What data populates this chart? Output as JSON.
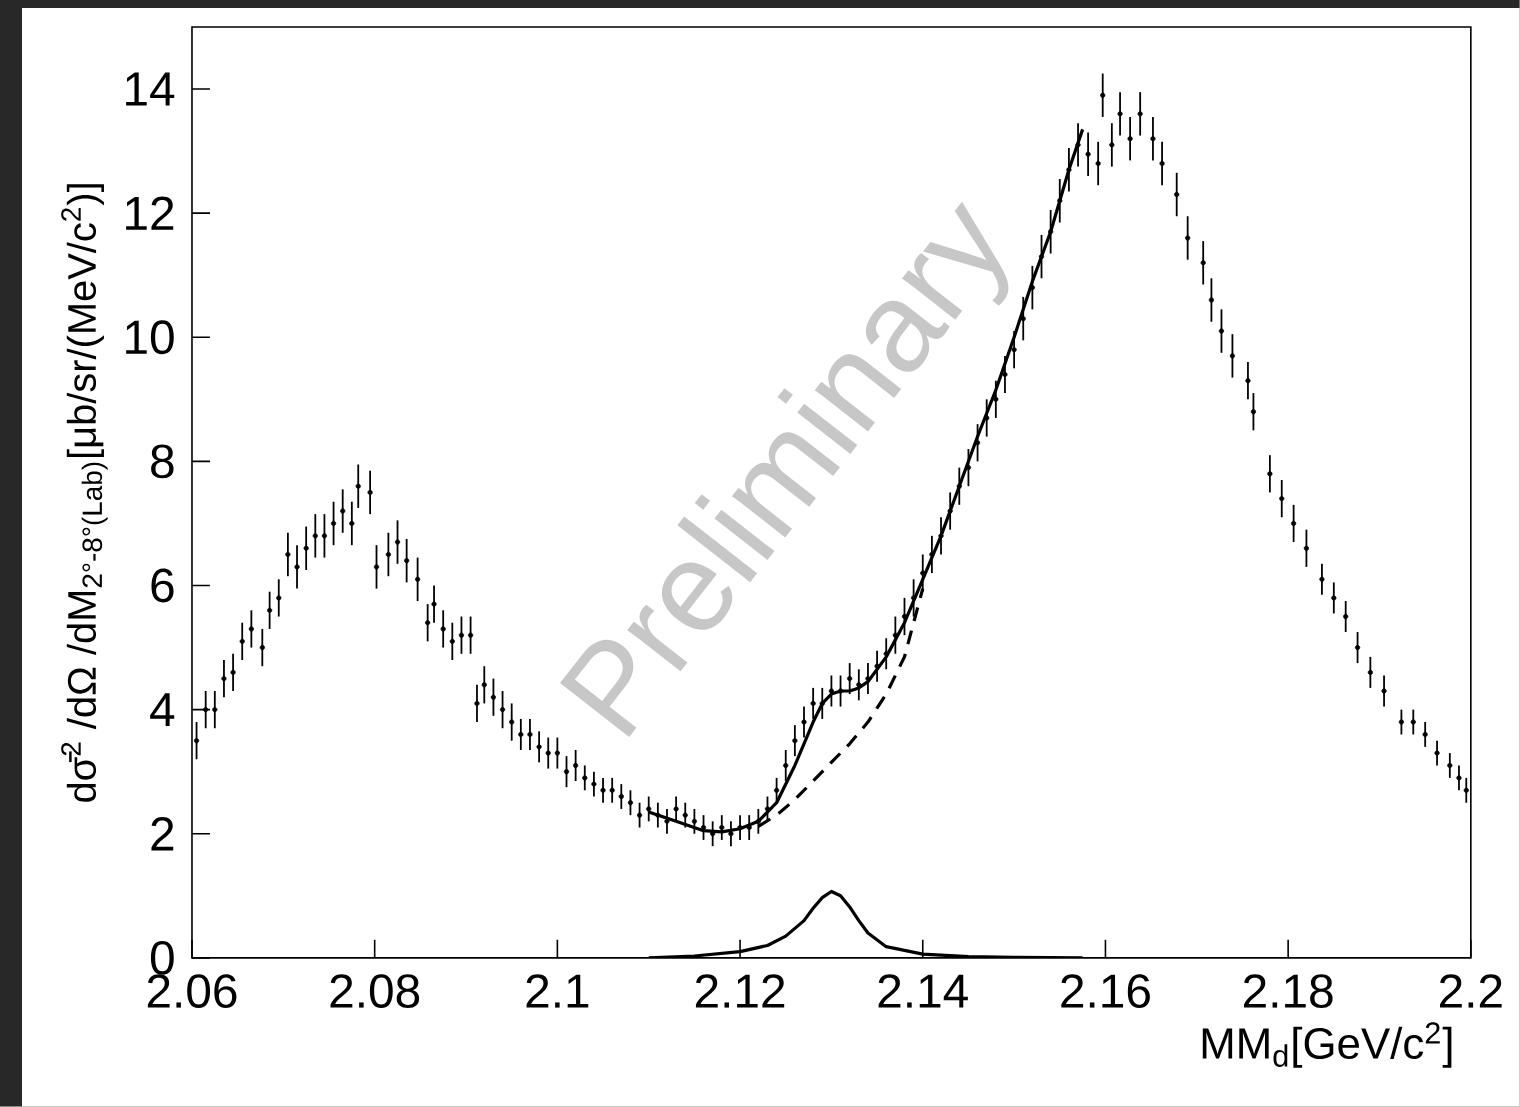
{
  "chart_data": {
    "type": "scatter",
    "xlabel": "MM$_{d}$[GeV/c$^{2}$]",
    "ylabel": "dσ̄$^{2}$ /dΩ /dM$_{2°-8°(Lab)}$[μb/sr/(MeV/c$^{2}$)]",
    "annotations": [
      "Preliminary"
    ],
    "xlim": [
      2.06,
      2.2
    ],
    "ylim": [
      0,
      15
    ],
    "xticks": [
      2.06,
      2.08,
      2.1,
      2.12,
      2.14,
      2.16,
      2.18,
      2.2
    ],
    "yticks": [
      0,
      2,
      4,
      6,
      8,
      10,
      12,
      14
    ],
    "series": [
      {
        "color": "#000000",
        "x": [
          2.0605,
          2.0615,
          2.0625,
          2.0635,
          2.0645,
          2.0655,
          2.0665,
          2.0677,
          2.0685,
          2.0695,
          2.0705,
          2.0715,
          2.0725,
          2.0735,
          2.0745,
          2.0755,
          2.0765,
          2.0775,
          2.0782,
          2.0795,
          2.0802,
          2.0815,
          2.0825,
          2.0835,
          2.0847,
          2.0858,
          2.0865,
          2.0875,
          2.0885,
          2.0895,
          2.0905,
          2.0912,
          2.092,
          2.093,
          2.094,
          2.095,
          2.096,
          2.097,
          2.098,
          2.099,
          2.1,
          2.101,
          2.102,
          2.103,
          2.104,
          2.105,
          2.106,
          2.107,
          2.108,
          2.109,
          2.11,
          2.111,
          2.112,
          2.113,
          2.114,
          2.115,
          2.116,
          2.117,
          2.118,
          2.119,
          2.12,
          2.121,
          2.122,
          2.123,
          2.124,
          2.125,
          2.126,
          2.127,
          2.128,
          2.129,
          2.13,
          2.131,
          2.132,
          2.133,
          2.134,
          2.135,
          2.136,
          2.137,
          2.138,
          2.139,
          2.14,
          2.141,
          2.142,
          2.143,
          2.144,
          2.145,
          2.146,
          2.147,
          2.148,
          2.149,
          2.15,
          2.151,
          2.152,
          2.153,
          2.154,
          2.155,
          2.156,
          2.157,
          2.1581,
          2.1592,
          2.1597,
          2.1607,
          2.1616,
          2.1627,
          2.1638,
          2.1652,
          2.1662,
          2.1678,
          2.169,
          2.1707,
          2.1716,
          2.1727,
          2.1739,
          2.1756,
          2.1762,
          2.178,
          2.1793,
          2.1806,
          2.182,
          2.1837,
          2.185,
          2.1863,
          2.1876,
          2.189,
          2.1905,
          2.1924,
          2.1937,
          2.195,
          2.1963,
          2.1977,
          2.1987,
          2.1995
        ],
        "values": [
          3.5,
          4.0,
          4.0,
          4.5,
          4.6,
          5.1,
          5.3,
          5.0,
          5.6,
          5.8,
          6.5,
          6.3,
          6.6,
          6.8,
          6.8,
          7.0,
          7.2,
          7.0,
          7.6,
          7.5,
          6.3,
          6.5,
          6.7,
          6.4,
          6.1,
          5.4,
          5.7,
          5.3,
          5.1,
          5.2,
          5.2,
          4.1,
          4.4,
          4.2,
          4.0,
          3.8,
          3.6,
          3.6,
          3.4,
          3.3,
          3.3,
          3.0,
          3.1,
          2.9,
          2.8,
          2.7,
          2.7,
          2.6,
          2.5,
          2.3,
          2.4,
          2.3,
          2.2,
          2.4,
          2.3,
          2.2,
          2.1,
          2.0,
          2.1,
          2.0,
          2.1,
          2.1,
          2.2,
          2.4,
          2.7,
          3.1,
          3.5,
          3.8,
          4.1,
          4.1,
          4.3,
          4.3,
          4.5,
          4.4,
          4.5,
          4.7,
          4.9,
          5.2,
          5.5,
          5.8,
          6.2,
          6.5,
          6.8,
          7.2,
          7.6,
          7.9,
          8.3,
          8.7,
          9.0,
          9.4,
          9.8,
          10.3,
          10.8,
          11.3,
          11.7,
          12.2,
          12.7,
          13.1,
          12.95,
          12.8,
          13.9,
          13.1,
          13.6,
          13.2,
          13.6,
          13.2,
          12.8,
          12.3,
          11.6,
          11.2,
          10.6,
          10.1,
          9.7,
          9.3,
          8.8,
          7.8,
          7.4,
          7.0,
          6.6,
          6.1,
          5.8,
          5.5,
          5.0,
          4.6,
          4.3,
          3.8,
          3.8,
          3.6,
          3.3,
          3.1,
          2.9,
          2.7
        ],
        "errors": [
          0.3,
          0.3,
          0.3,
          0.3,
          0.3,
          0.3,
          0.3,
          0.3,
          0.3,
          0.3,
          0.35,
          0.35,
          0.35,
          0.35,
          0.35,
          0.35,
          0.35,
          0.35,
          0.35,
          0.35,
          0.35,
          0.35,
          0.35,
          0.35,
          0.35,
          0.3,
          0.3,
          0.3,
          0.3,
          0.3,
          0.3,
          0.3,
          0.3,
          0.3,
          0.3,
          0.3,
          0.25,
          0.25,
          0.25,
          0.25,
          0.25,
          0.25,
          0.25,
          0.2,
          0.2,
          0.2,
          0.2,
          0.2,
          0.2,
          0.2,
          0.2,
          0.2,
          0.2,
          0.2,
          0.2,
          0.2,
          0.2,
          0.2,
          0.2,
          0.2,
          0.2,
          0.2,
          0.2,
          0.2,
          0.2,
          0.25,
          0.25,
          0.25,
          0.25,
          0.25,
          0.25,
          0.25,
          0.25,
          0.25,
          0.25,
          0.25,
          0.25,
          0.3,
          0.3,
          0.3,
          0.3,
          0.3,
          0.3,
          0.3,
          0.3,
          0.3,
          0.3,
          0.3,
          0.3,
          0.3,
          0.3,
          0.35,
          0.35,
          0.35,
          0.35,
          0.35,
          0.35,
          0.35,
          0.35,
          0.35,
          0.35,
          0.35,
          0.35,
          0.35,
          0.35,
          0.35,
          0.35,
          0.35,
          0.35,
          0.35,
          0.35,
          0.35,
          0.35,
          0.3,
          0.3,
          0.3,
          0.3,
          0.3,
          0.3,
          0.25,
          0.25,
          0.25,
          0.25,
          0.25,
          0.25,
          0.2,
          0.2,
          0.2,
          0.2,
          0.2,
          0.2,
          0.2
        ]
      },
      {
        "type": "line",
        "color": "#000000",
        "line_style": "solid",
        "x": [
          2.11,
          2.113,
          2.116,
          2.118,
          2.12,
          2.122,
          2.124,
          2.126,
          2.128,
          2.129,
          2.13,
          2.131,
          2.132,
          2.133,
          2.134,
          2.136,
          2.138,
          2.14,
          2.142,
          2.144,
          2.146,
          2.148,
          2.15,
          2.152,
          2.154,
          2.156,
          2.1575
        ],
        "values": [
          2.35,
          2.2,
          2.05,
          2.03,
          2.08,
          2.2,
          2.5,
          3.1,
          3.8,
          4.1,
          4.25,
          4.3,
          4.3,
          4.35,
          4.45,
          4.85,
          5.4,
          6.1,
          6.8,
          7.6,
          8.4,
          9.15,
          10.0,
          10.9,
          11.7,
          12.7,
          13.35
        ]
      },
      {
        "type": "line",
        "color": "#000000",
        "line_style": "dashed",
        "x": [
          2.122,
          2.124,
          2.126,
          2.128,
          2.13,
          2.132,
          2.134,
          2.136,
          2.138,
          2.14
        ],
        "values": [
          2.12,
          2.3,
          2.55,
          2.85,
          3.15,
          3.45,
          3.8,
          4.25,
          4.85,
          5.95
        ]
      },
      {
        "type": "line",
        "color": "#000000",
        "line_style": "solid",
        "x": [
          2.11,
          2.115,
          2.12,
          2.123,
          2.125,
          2.127,
          2.128,
          2.129,
          2.13,
          2.131,
          2.132,
          2.133,
          2.134,
          2.136,
          2.14,
          2.145,
          2.15,
          2.1575
        ],
        "values": [
          0.0,
          0.03,
          0.1,
          0.2,
          0.35,
          0.6,
          0.8,
          0.97,
          1.07,
          1.0,
          0.82,
          0.6,
          0.4,
          0.18,
          0.06,
          0.02,
          0.01,
          0.0
        ]
      }
    ]
  }
}
